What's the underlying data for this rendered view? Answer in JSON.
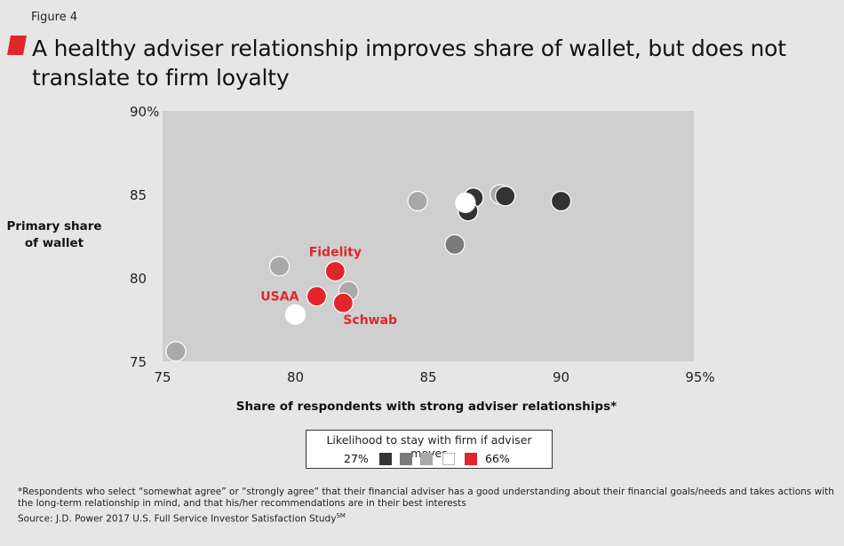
{
  "figure_label": "Figure 4",
  "title": "A healthy adviser relationship improves share of wallet, but does not translate to firm loyalty",
  "footnote": "*Respondents who select “somewhat agree” or “strongly agree” that their financial adviser has a good understanding about their financial goals/needs and takes actions with the long-term relationship in mind, and that his/her recommendations are in their best interests",
  "source_text": "Source: J.D. Power 2017 U.S. Full Service Investor Satisfaction Study",
  "source_mark": "SM",
  "colors": {
    "title_mark": "#e0262b",
    "plot_bg": "#cfcfcf",
    "levels": [
      "#333333",
      "#7a7a7a",
      "#a9a9a9",
      "#ffffff",
      "#e0262b"
    ],
    "annotation": "#e0262b"
  },
  "legend": {
    "title": "Likelihood to stay with firm if adviser moves",
    "low_label": "27%",
    "high_label": "66%"
  },
  "chart_data": {
    "type": "scatter",
    "xlabel": "Share of respondents with strong adviser relationships*",
    "ylabel_line1": "Primary share",
    "ylabel_line2": "of wallet",
    "xlim": [
      75,
      95
    ],
    "ylim": [
      75,
      90
    ],
    "x_ticks": [
      "75",
      "80",
      "85",
      "90",
      "95%"
    ],
    "y_ticks": [
      "90%",
      "85",
      "80",
      "75"
    ],
    "grid": false,
    "legend_position": "bottom-center",
    "points": [
      {
        "x": 75.5,
        "y": 75.6,
        "level": 2
      },
      {
        "x": 79.4,
        "y": 80.7,
        "level": 2
      },
      {
        "x": 82.0,
        "y": 79.2,
        "level": 2
      },
      {
        "x": 84.6,
        "y": 84.6,
        "level": 2
      },
      {
        "x": 87.7,
        "y": 85.0,
        "level": 2
      },
      {
        "x": 86.0,
        "y": 82.0,
        "level": 1
      },
      {
        "x": 86.7,
        "y": 84.8,
        "level": 0
      },
      {
        "x": 86.5,
        "y": 84.0,
        "level": 0
      },
      {
        "x": 87.9,
        "y": 84.9,
        "level": 0
      },
      {
        "x": 90.0,
        "y": 84.6,
        "level": 0
      },
      {
        "x": 86.4,
        "y": 84.5,
        "level": 3
      },
      {
        "x": 80.0,
        "y": 77.8,
        "level": 3
      },
      {
        "x": 81.5,
        "y": 80.4,
        "level": 4,
        "label": "Fidelity"
      },
      {
        "x": 80.8,
        "y": 78.9,
        "level": 4,
        "label": "USAA"
      },
      {
        "x": 81.8,
        "y": 78.5,
        "level": 4,
        "label": "Schwab"
      }
    ]
  }
}
